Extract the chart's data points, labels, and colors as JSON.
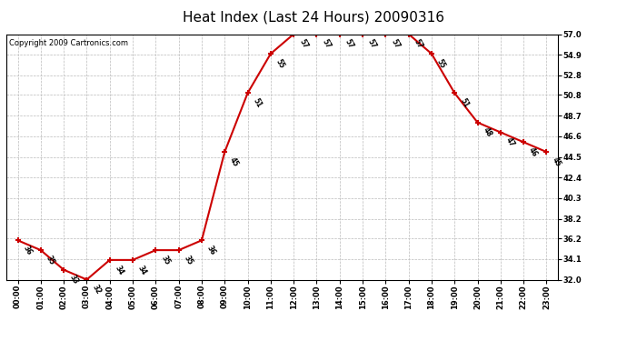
{
  "title": "Heat Index (Last 24 Hours) 20090316",
  "copyright": "Copyright 2009 Cartronics.com",
  "hours": [
    "00:00",
    "01:00",
    "02:00",
    "03:00",
    "04:00",
    "05:00",
    "06:00",
    "07:00",
    "08:00",
    "09:00",
    "10:00",
    "11:00",
    "12:00",
    "13:00",
    "14:00",
    "15:00",
    "16:00",
    "17:00",
    "18:00",
    "19:00",
    "20:00",
    "21:00",
    "22:00",
    "23:00"
  ],
  "values": [
    36,
    35,
    33,
    32,
    34,
    34,
    35,
    35,
    36,
    45,
    51,
    55,
    57,
    57,
    57,
    57,
    57,
    57,
    55,
    51,
    48,
    47,
    46,
    45
  ],
  "ylim_min": 32.0,
  "ylim_max": 57.0,
  "yticks": [
    32.0,
    34.1,
    36.2,
    38.2,
    40.3,
    42.4,
    44.5,
    46.6,
    48.7,
    50.8,
    52.8,
    54.9,
    57.0
  ],
  "line_color": "#cc0000",
  "marker_color": "#cc0000",
  "bg_color": "#ffffff",
  "grid_color": "#bbbbbb",
  "title_fontsize": 11,
  "copyright_fontsize": 6,
  "tick_fontsize": 6,
  "data_label_fontsize": 5.5
}
